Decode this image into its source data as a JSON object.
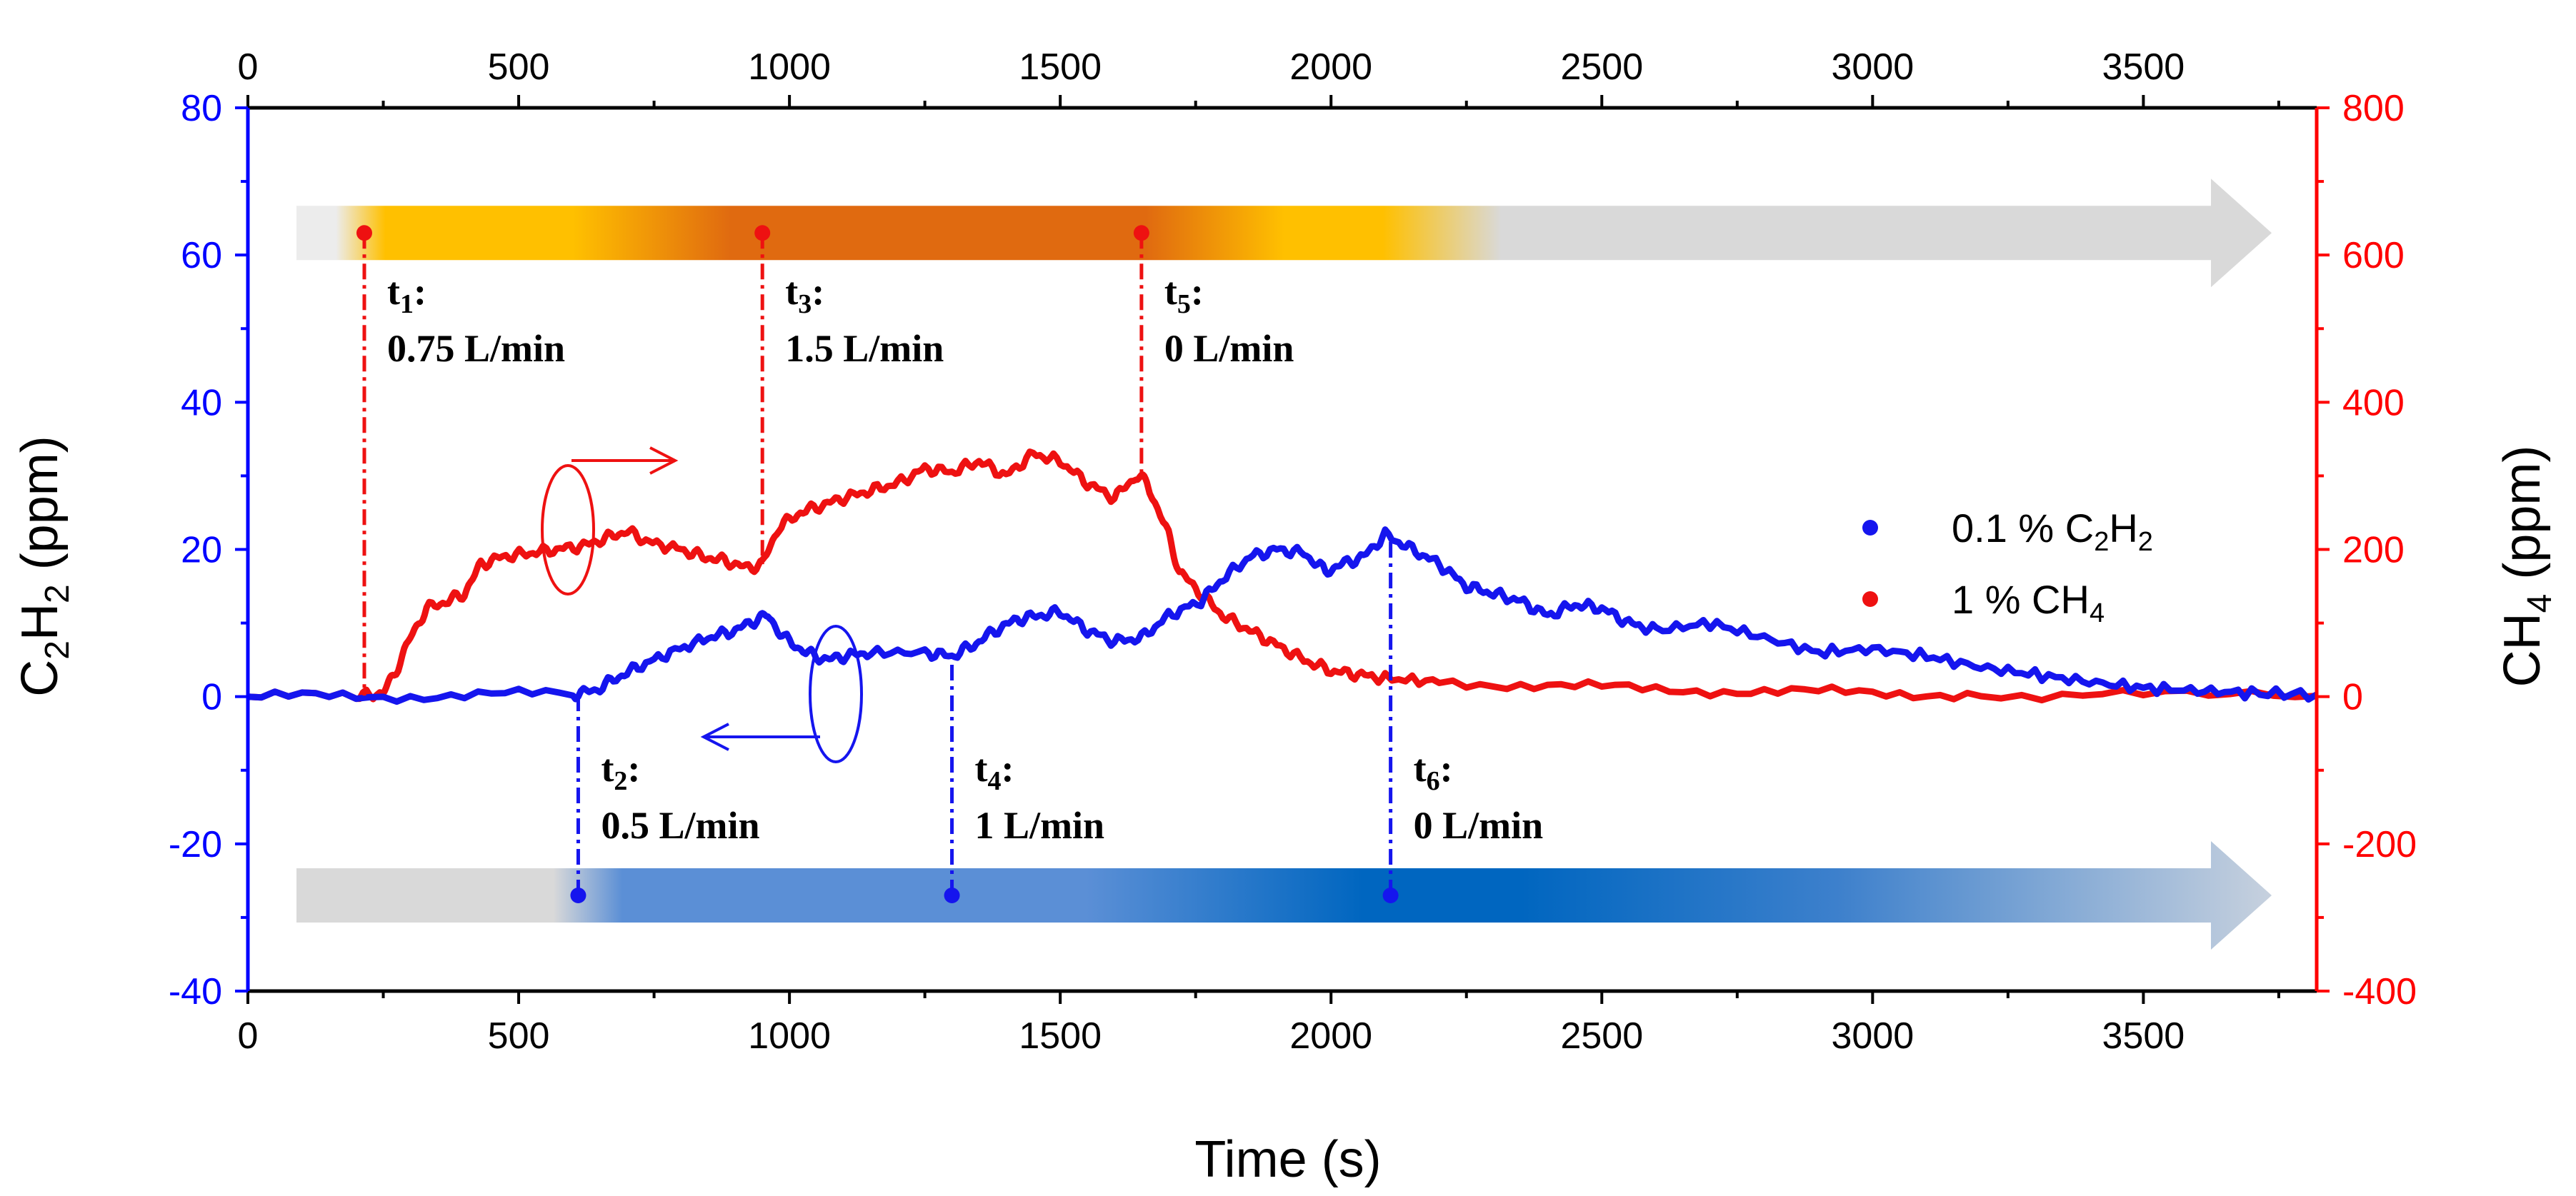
{
  "chart_data": {
    "type": "line",
    "xlabel": "Time (s)",
    "x_axis": {
      "min": 0,
      "max": 3820,
      "ticks": [
        0,
        500,
        1000,
        1500,
        2000,
        2500,
        3000,
        3500
      ],
      "labels": [
        "0",
        "500",
        "1000",
        "1500",
        "2000",
        "2500",
        "3000",
        "3500"
      ]
    },
    "x_top_axis": {
      "ticks": [
        0,
        500,
        1000,
        1500,
        2000,
        2500,
        3000,
        3500
      ],
      "labels": [
        "0",
        "500",
        "1000",
        "1500",
        "2000",
        "2500",
        "3000",
        "3500"
      ]
    },
    "y_left": {
      "label_parts": {
        "a": "C",
        "b": "2",
        "c": "H",
        "d": "2",
        "e": " (ppm)"
      },
      "min": -40,
      "max": 80,
      "ticks": [
        -40,
        -20,
        0,
        20,
        40,
        60,
        80
      ],
      "labels": [
        "-40",
        "-20",
        "0",
        "20",
        "40",
        "60",
        "80"
      ],
      "color": "#0000ff"
    },
    "y_right": {
      "label_parts": {
        "a": "CH",
        "b": "4",
        "c": " (ppm)"
      },
      "min": -400,
      "max": 800,
      "ticks": [
        -400,
        -200,
        0,
        200,
        400,
        600,
        800
      ],
      "labels": [
        "-400",
        "-200",
        "0",
        "200",
        "400",
        "600",
        "800"
      ],
      "color": "#ff0000"
    },
    "series": [
      {
        "name": "0.1 % C2H2",
        "legend_parts": {
          "a": "0.1 % C",
          "b": "2",
          "c": "H",
          "d": "2"
        },
        "axis": "left",
        "color": "#1515ee",
        "points": [
          [
            0,
            0
          ],
          [
            200,
            0
          ],
          [
            400,
            0.2
          ],
          [
            600,
            0.4
          ],
          [
            640,
            0.8
          ],
          [
            680,
            2.5
          ],
          [
            720,
            4
          ],
          [
            780,
            6
          ],
          [
            850,
            8
          ],
          [
            900,
            9
          ],
          [
            940,
            10.5
          ],
          [
            960,
            11
          ],
          [
            990,
            8
          ],
          [
            1030,
            6
          ],
          [
            1070,
            5
          ],
          [
            1100,
            5.5
          ],
          [
            1150,
            6
          ],
          [
            1250,
            6
          ],
          [
            1300,
            5.5
          ],
          [
            1340,
            7
          ],
          [
            1380,
            9
          ],
          [
            1420,
            10.5
          ],
          [
            1460,
            11
          ],
          [
            1500,
            11.5
          ],
          [
            1550,
            9
          ],
          [
            1600,
            7.5
          ],
          [
            1650,
            8
          ],
          [
            1700,
            11
          ],
          [
            1760,
            13
          ],
          [
            1800,
            16
          ],
          [
            1850,
            19
          ],
          [
            1900,
            20
          ],
          [
            1950,
            19.5
          ],
          [
            1990,
            17
          ],
          [
            2020,
            18
          ],
          [
            2060,
            19
          ],
          [
            2100,
            22
          ],
          [
            2150,
            20
          ],
          [
            2200,
            18
          ],
          [
            2250,
            15
          ],
          [
            2300,
            14
          ],
          [
            2350,
            13
          ],
          [
            2400,
            11
          ],
          [
            2450,
            12.5
          ],
          [
            2500,
            12
          ],
          [
            2550,
            10
          ],
          [
            2600,
            9
          ],
          [
            2700,
            10
          ],
          [
            2800,
            8
          ],
          [
            2900,
            6
          ],
          [
            3000,
            6.5
          ],
          [
            3100,
            5.5
          ],
          [
            3200,
            4
          ],
          [
            3300,
            3
          ],
          [
            3400,
            2
          ],
          [
            3500,
            1.2
          ],
          [
            3600,
            0.8
          ],
          [
            3700,
            0.5
          ],
          [
            3820,
            0.3
          ]
        ]
      },
      {
        "name": "1 % CH4",
        "legend_parts": {
          "a": "1 % CH",
          "b": "4"
        },
        "axis": "right",
        "color": "#ee1111",
        "points": [
          [
            0,
            0
          ],
          [
            200,
            0
          ],
          [
            250,
            5
          ],
          [
            270,
            30
          ],
          [
            300,
            80
          ],
          [
            330,
            120
          ],
          [
            370,
            130
          ],
          [
            400,
            140
          ],
          [
            430,
            180
          ],
          [
            470,
            190
          ],
          [
            520,
            195
          ],
          [
            570,
            200
          ],
          [
            620,
            205
          ],
          [
            660,
            215
          ],
          [
            700,
            225
          ],
          [
            740,
            210
          ],
          [
            800,
            200
          ],
          [
            840,
            190
          ],
          [
            880,
            185
          ],
          [
            920,
            175
          ],
          [
            950,
            180
          ],
          [
            980,
            230
          ],
          [
            1020,
            250
          ],
          [
            1060,
            260
          ],
          [
            1100,
            270
          ],
          [
            1150,
            280
          ],
          [
            1200,
            290
          ],
          [
            1250,
            310
          ],
          [
            1300,
            305
          ],
          [
            1350,
            320
          ],
          [
            1400,
            300
          ],
          [
            1450,
            330
          ],
          [
            1500,
            320
          ],
          [
            1550,
            290
          ],
          [
            1600,
            270
          ],
          [
            1640,
            300
          ],
          [
            1660,
            290
          ],
          [
            1700,
            220
          ],
          [
            1720,
            170
          ],
          [
            1760,
            140
          ],
          [
            1800,
            110
          ],
          [
            1850,
            90
          ],
          [
            1900,
            70
          ],
          [
            1950,
            50
          ],
          [
            2000,
            35
          ],
          [
            2050,
            30
          ],
          [
            2100,
            25
          ],
          [
            2200,
            20
          ],
          [
            2400,
            15
          ],
          [
            2600,
            10
          ],
          [
            2800,
            7
          ],
          [
            3000,
            5
          ],
          [
            3200,
            3
          ],
          [
            3500,
            2
          ],
          [
            3820,
            1
          ]
        ]
      }
    ],
    "events": [
      {
        "sub": "1",
        "flow": "0.75 L/min",
        "time": 215,
        "series": "CH4"
      },
      {
        "sub": "2",
        "flow": "0.5 L/min",
        "time": 610,
        "series": "C2H2"
      },
      {
        "sub": "3",
        "flow": "1.5 L/min",
        "time": 950,
        "series": "CH4"
      },
      {
        "sub": "4",
        "flow": "1 L/min",
        "time": 1300,
        "series": "C2H2"
      },
      {
        "sub": "5",
        "flow": "0 L/min",
        "time": 1650,
        "series": "CH4"
      },
      {
        "sub": "6",
        "flow": "0 L/min",
        "time": 2110,
        "series": "C2H2"
      }
    ],
    "event_label_letter": "t",
    "event_label_suffix": ":",
    "arrows": [
      {
        "name": "ch4-flow-arrow",
        "y_value": 63,
        "gradient": "orange"
      },
      {
        "name": "c2h2-flow-arrow",
        "y_value": -27,
        "gradient": "blue"
      }
    ],
    "legend_position": "right-middle",
    "grid": false
  },
  "colors": {
    "left_axis": "#0000ff",
    "right_axis": "#ff0000",
    "arrow_gray": "#d9d9d9",
    "orange_light": "#ffc000",
    "orange_dark": "#e06a10",
    "blue_light": "#5b8fd6",
    "blue_dark": "#0066c0"
  }
}
